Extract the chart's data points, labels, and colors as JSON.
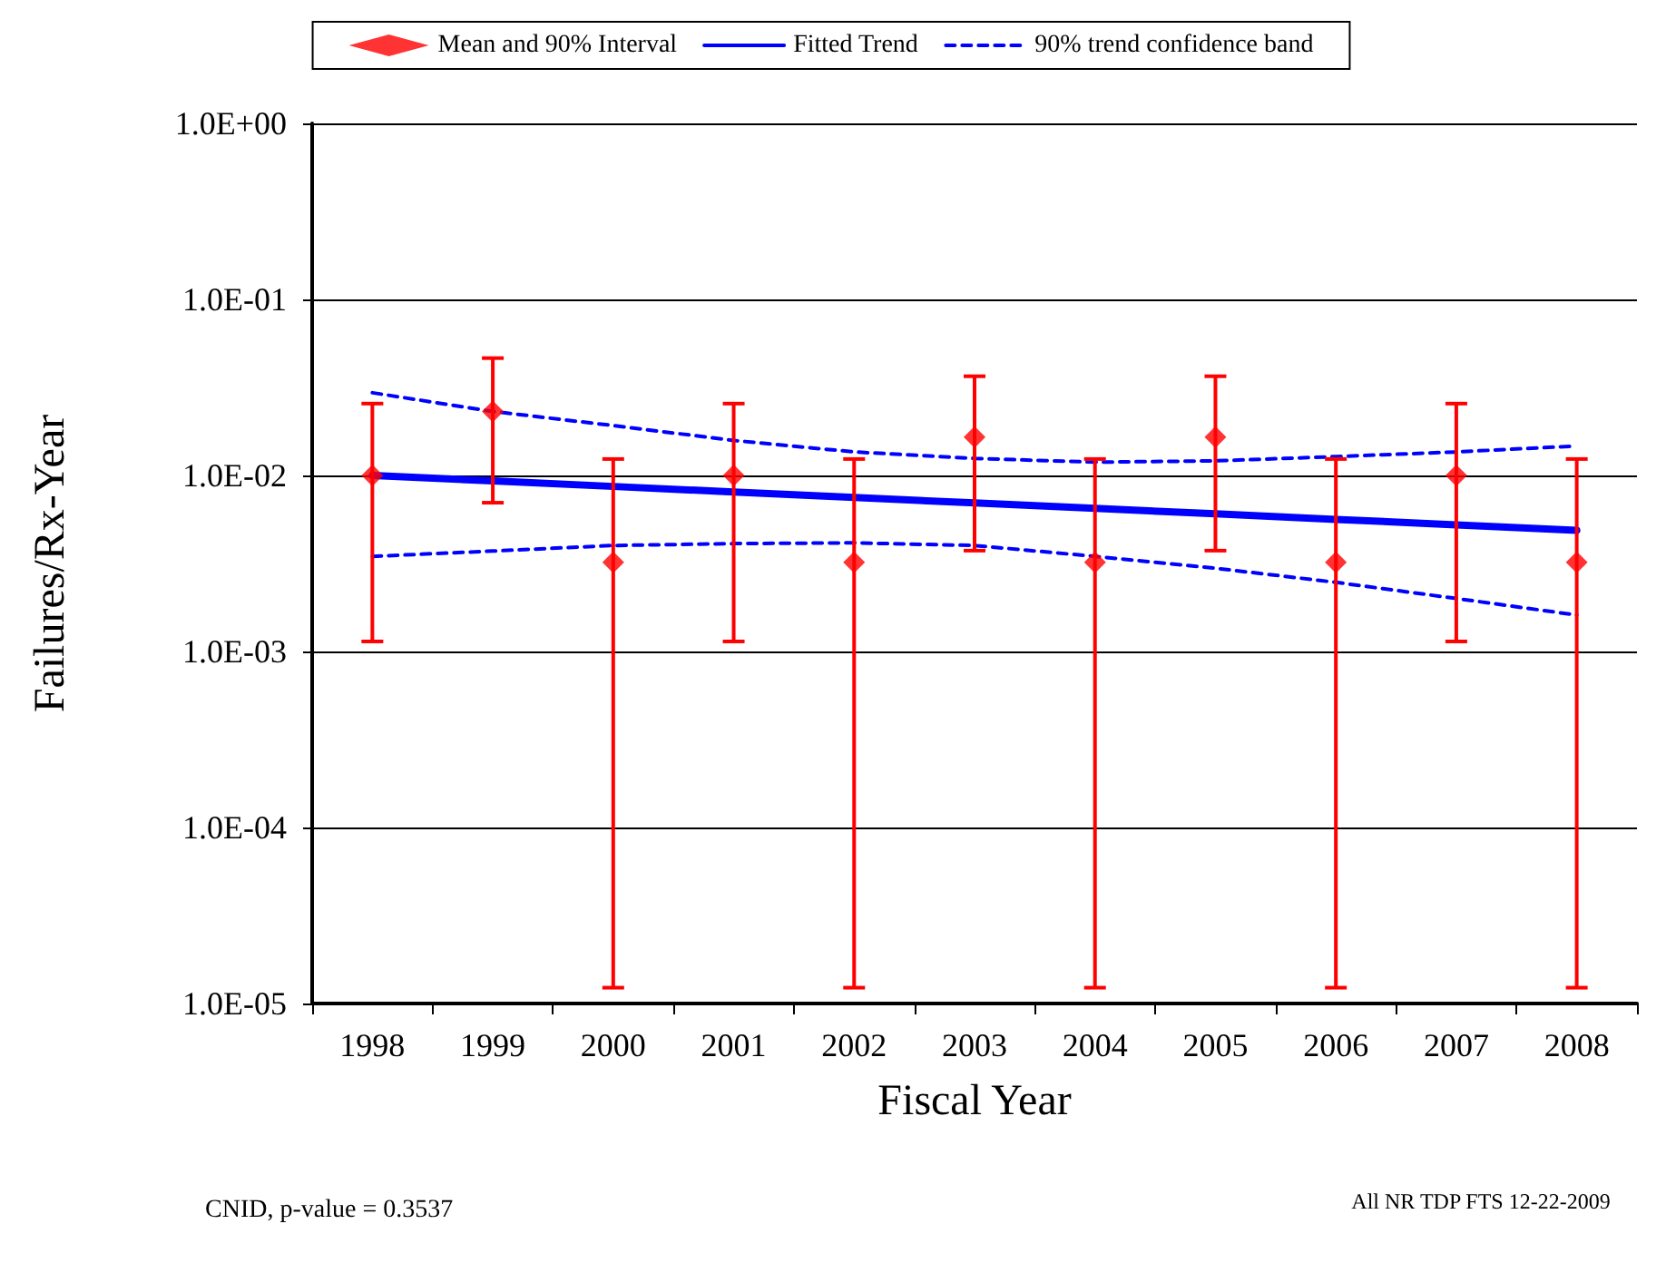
{
  "chart_data": {
    "type": "scatter",
    "xlabel": "Fiscal Year",
    "ylabel": "Failures/Rx-Year",
    "categories": [
      "1998",
      "1999",
      "2000",
      "2001",
      "2002",
      "2003",
      "2004",
      "2005",
      "2006",
      "2007",
      "2008"
    ],
    "series": [
      {
        "name": "Mean and 90% Interval",
        "color": "#ff0000",
        "marker": "diamond",
        "values": [
          0.01,
          0.0231,
          0.00321,
          0.01,
          0.00321,
          0.0165,
          0.00321,
          0.0165,
          0.00321,
          0.01,
          0.00321
        ],
        "errors": [
          [
            0.00114,
            0.0256
          ],
          [
            0.007,
            0.0464
          ],
          [
            1.23e-05,
            0.0124
          ],
          [
            0.00114,
            0.0256
          ],
          [
            1.23e-05,
            0.0124
          ],
          [
            0.00374,
            0.0366
          ],
          [
            1.23e-05,
            0.0124
          ],
          [
            0.00374,
            0.0366
          ],
          [
            1.23e-05,
            0.0124
          ],
          [
            0.00114,
            0.0256
          ],
          [
            1.23e-05,
            0.0124
          ]
        ]
      },
      {
        "name": "Fitted Trend",
        "type": "line",
        "color": "#0000ff",
        "line_style": "solid",
        "marker": "none",
        "values": [
          0.01,
          0.0093,
          0.00866,
          0.00806,
          0.0075,
          0.00698,
          0.0065,
          0.00605,
          0.00563,
          0.00524,
          0.00487
        ]
      },
      {
        "name": "90% trend confidence band",
        "type": "line",
        "color": "#0000ff",
        "line_style": "dashed",
        "marker": "none",
        "values": [
          0.0295,
          0.0231,
          0.0192,
          0.0158,
          0.0136,
          0.0125,
          0.0119,
          0.0121,
          0.0128,
          0.0136,
          0.0147
        ]
      },
      {
        "type": "line",
        "color": "#0000ff",
        "line_style": "dashed",
        "marker": "none",
        "values": [
          0.00347,
          0.00372,
          0.004,
          0.0041,
          0.00414,
          0.004,
          0.00347,
          0.00297,
          0.00247,
          0.002,
          0.00161
        ]
      }
    ],
    "log": "y",
    "ylim": [
      1e-05,
      1
    ],
    "yticks": [
      {
        "value": 1e-05,
        "label": "1.0E-05"
      },
      {
        "value": 0.0001,
        "label": "1.0E-04"
      },
      {
        "value": 0.001,
        "label": "1.0E-03"
      },
      {
        "value": 0.01,
        "label": "1.0E-02"
      },
      {
        "value": 0.1,
        "label": "1.0E-01"
      },
      {
        "value": 1,
        "label": "1.0E+00"
      }
    ],
    "grid": "y",
    "legend": "top",
    "annotations": [
      "CNID, p-value = 0.3537",
      "All NR TDP FTS 12-22-2009"
    ]
  }
}
